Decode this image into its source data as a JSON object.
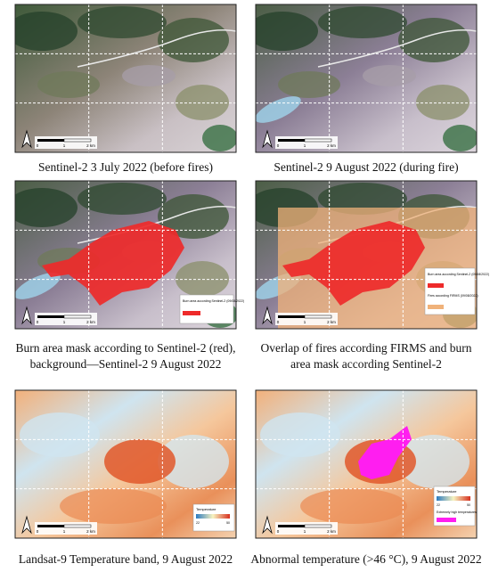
{
  "panels": [
    {
      "caption": "Sentinel-2 3 July 2022 (before fires)",
      "scale_bar": [
        "0",
        "1",
        "2 km"
      ]
    },
    {
      "caption": "Sentinel-2 9 August 2022 (during fire)",
      "scale_bar": [
        "0",
        "1",
        "2 km"
      ]
    },
    {
      "caption": "Burn area mask according to Sentinel-2 (red), background—Sentinel-2 9 August 2022",
      "scale_bar": [
        "0",
        "1",
        "2 km"
      ],
      "legend": [
        "Burn area according Sentinel-2 (09/08/2022)"
      ]
    },
    {
      "caption": "Overlap of fires according FIRMS and burn area mask according Sentinel-2",
      "scale_bar": [
        "0",
        "1",
        "2 km"
      ],
      "legend": [
        "Burn area according Sentinel-2 (09/08/2022)",
        "Fires according FIRMS (09/08/2022)"
      ]
    },
    {
      "caption": "Landsat-9 Temperature band, 9 August 2022",
      "scale_bar": [
        "0",
        "1",
        "2 km"
      ],
      "legend": [
        "Temperature",
        "22",
        "50"
      ]
    },
    {
      "caption": "Abnormal temperature (>46 °C), 9 August 2022",
      "scale_bar": [
        "0",
        "1",
        "2 km"
      ],
      "legend": [
        "Temperature",
        "22",
        "50",
        "Extremely high temperatures"
      ]
    }
  ]
}
